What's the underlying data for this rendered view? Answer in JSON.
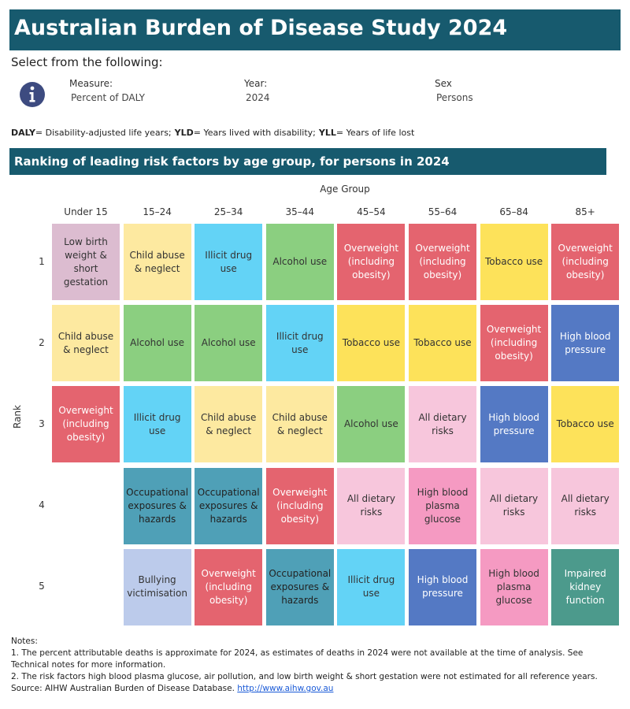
{
  "header": {
    "title": "Australian Burden of Disease Study 2024",
    "bar_color": "#175a6e"
  },
  "prompt": "Select from the following:",
  "filters": [
    {
      "label": "Measure:",
      "value": "Percent of DALY"
    },
    {
      "label": "Year:",
      "value": "2024"
    },
    {
      "label": "Sex",
      "value": "Persons"
    }
  ],
  "definitions": [
    {
      "abbr": "DALY",
      "text": "= Disability-adjusted life years;"
    },
    {
      "abbr": "YLD",
      "text": "= Years lived with disability;"
    },
    {
      "abbr": "YLL",
      "text": "= Years of life lost"
    }
  ],
  "section": {
    "title": "Ranking of leading risk factors by age group, for persons in 2024"
  },
  "grid": {
    "column_title": "Age Group",
    "row_title": "Rank",
    "columns": [
      "Under 15",
      "15–24",
      "25–34",
      "35–44",
      "45–54",
      "55–64",
      "65–84",
      "85+"
    ],
    "rows": [
      "1",
      "2",
      "3",
      "4",
      "5"
    ],
    "cells": [
      [
        {
          "label": "Low birth weight & short gestation",
          "color": "#dcbcd0",
          "text_color": "#333333"
        },
        {
          "label": "Child abuse & neglect",
          "color": "#fde9a0",
          "text_color": "#333333"
        },
        {
          "label": "Illicit drug use",
          "color": "#63d3f6",
          "text_color": "#333333"
        },
        {
          "label": "Alcohol use",
          "color": "#8bcf80",
          "text_color": "#333333"
        },
        {
          "label": "Overweight (including obesity)",
          "color": "#e4646f",
          "text_color": "#ffffff"
        },
        {
          "label": "Overweight (including obesity)",
          "color": "#e4646f",
          "text_color": "#ffffff"
        },
        {
          "label": "Tobacco use",
          "color": "#fde25a",
          "text_color": "#333333"
        },
        {
          "label": "Overweight (including obesity)",
          "color": "#e4646f",
          "text_color": "#ffffff"
        }
      ],
      [
        {
          "label": "Child abuse & neglect",
          "color": "#fde9a0",
          "text_color": "#333333"
        },
        {
          "label": "Alcohol use",
          "color": "#8bcf80",
          "text_color": "#333333"
        },
        {
          "label": "Alcohol use",
          "color": "#8bcf80",
          "text_color": "#333333"
        },
        {
          "label": "Illicit drug use",
          "color": "#63d3f6",
          "text_color": "#333333"
        },
        {
          "label": "Tobacco use",
          "color": "#fde25a",
          "text_color": "#333333"
        },
        {
          "label": "Tobacco use",
          "color": "#fde25a",
          "text_color": "#333333"
        },
        {
          "label": "Overweight (including obesity)",
          "color": "#e4646f",
          "text_color": "#ffffff"
        },
        {
          "label": "High blood pressure",
          "color": "#5479c4",
          "text_color": "#ffffff"
        }
      ],
      [
        {
          "label": "Overweight (including obesity)",
          "color": "#e4646f",
          "text_color": "#ffffff"
        },
        {
          "label": "Illicit drug use",
          "color": "#63d3f6",
          "text_color": "#333333"
        },
        {
          "label": "Child abuse & neglect",
          "color": "#fde9a0",
          "text_color": "#333333"
        },
        {
          "label": "Child abuse & neglect",
          "color": "#fde9a0",
          "text_color": "#333333"
        },
        {
          "label": "Alcohol use",
          "color": "#8bcf80",
          "text_color": "#333333"
        },
        {
          "label": "All dietary risks",
          "color": "#f7c6dc",
          "text_color": "#333333"
        },
        {
          "label": "High blood pressure",
          "color": "#5479c4",
          "text_color": "#ffffff"
        },
        {
          "label": "Tobacco use",
          "color": "#fde25a",
          "text_color": "#333333"
        }
      ],
      [
        null,
        {
          "label": "Occupational exposures & hazards",
          "color": "#4fa0b7",
          "text_color": "#222222"
        },
        {
          "label": "Occupational exposures & hazards",
          "color": "#4fa0b7",
          "text_color": "#222222"
        },
        {
          "label": "Overweight (including obesity)",
          "color": "#e4646f",
          "text_color": "#ffffff"
        },
        {
          "label": "All dietary risks",
          "color": "#f7c6dc",
          "text_color": "#333333"
        },
        {
          "label": "High blood plasma glucose",
          "color": "#f59ac2",
          "text_color": "#333333"
        },
        {
          "label": "All dietary risks",
          "color": "#f7c6dc",
          "text_color": "#333333"
        },
        {
          "label": "All dietary risks",
          "color": "#f7c6dc",
          "text_color": "#333333"
        }
      ],
      [
        null,
        {
          "label": "Bullying victimisation",
          "color": "#bccbeb",
          "text_color": "#333333"
        },
        {
          "label": "Overweight (including obesity)",
          "color": "#e4646f",
          "text_color": "#ffffff"
        },
        {
          "label": "Occupational exposures & hazards",
          "color": "#4fa0b7",
          "text_color": "#222222"
        },
        {
          "label": "Illicit drug use",
          "color": "#63d3f6",
          "text_color": "#333333"
        },
        {
          "label": "High blood pressure",
          "color": "#5479c4",
          "text_color": "#ffffff"
        },
        {
          "label": "High blood plasma glucose",
          "color": "#f59ac2",
          "text_color": "#333333"
        },
        {
          "label": "Impaired kidney function",
          "color": "#4c9a8c",
          "text_color": "#ffffff"
        }
      ]
    ]
  },
  "notes": {
    "title": "Notes:",
    "lines": [
      "1. The percent attributable deaths is approximate for 2024, as estimates of deaths in 2024 were not available at the time of analysis. See Technical notes for more information.",
      "2. The risk factors high blood plasma glucose, air pollution, and low birth weight & short gestation were not estimated for all reference years."
    ],
    "source": "Source: AIHW Australian Burden of Disease Database.",
    "link": "http://www.aihw.gov.au"
  }
}
